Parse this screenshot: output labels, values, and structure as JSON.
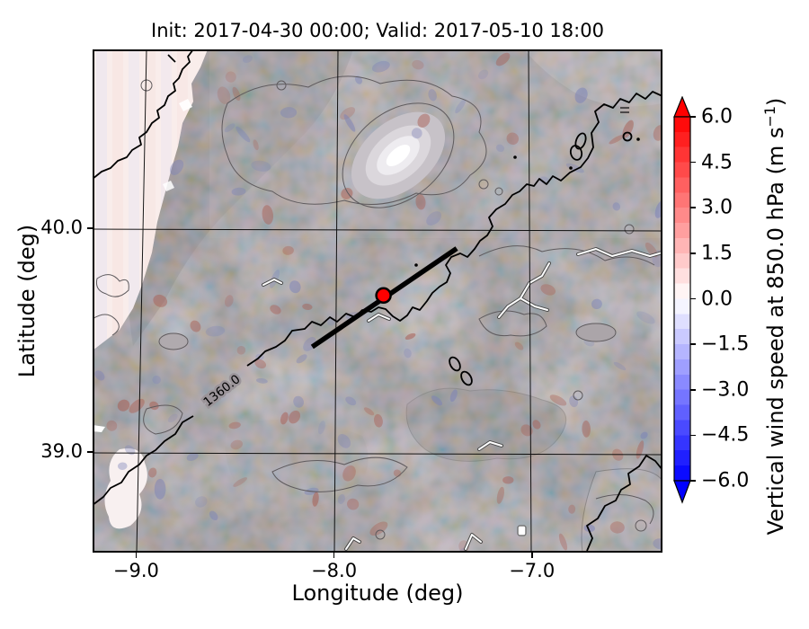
{
  "title": "Init: 2017-04-30 00:00; Valid: 2017-05-10 18:00",
  "init_time": "2017-04-30 00:00",
  "valid_time": "2017-05-10 18:00",
  "chart_data": {
    "type": "heatmap",
    "title": "Init: 2017-04-30 00:00; Valid: 2017-05-10 18:00",
    "xlabel": "Longitude (deg)",
    "ylabel": "Latitude (deg)",
    "xlim": [
      -9.22,
      -6.34
    ],
    "ylim": [
      38.55,
      40.8
    ],
    "xticks": [
      -9,
      -8,
      -7
    ],
    "xtick_labels": [
      "−9.0",
      "−8.0",
      "−7.0"
    ],
    "yticks": [
      40,
      39
    ],
    "ytick_labels": [
      "40.0",
      "39.0"
    ],
    "grid": true,
    "colorbar": {
      "label_prefix": "Vertical wind speed at 850.0 hPa (m s",
      "label_sup": "−1",
      "label_suffix": ")",
      "vmin": -6.0,
      "vmax": 6.0,
      "ticks": [
        6.0,
        4.5,
        3.0,
        1.5,
        0.0,
        -1.5,
        -3.0,
        -4.5,
        -6.0
      ],
      "tick_labels": [
        "6.0",
        "4.5",
        "3.0",
        "1.5",
        "0.0",
        "−1.5",
        "−3.0",
        "−4.5",
        "−6.0"
      ],
      "cmap": "blue-white-red",
      "extend": "both",
      "color_max": "#ff0000",
      "color_min": "#0000ff",
      "n_steps": 24
    },
    "contours": {
      "geopotential_label": "1360.0"
    },
    "cross_section_line": {
      "x": [
        -8.11,
        -7.38
      ],
      "y": [
        39.47,
        39.91
      ],
      "color": "#000000"
    },
    "marker": {
      "lon": -7.75,
      "lat": 39.7,
      "color": "#ff0000"
    }
  }
}
